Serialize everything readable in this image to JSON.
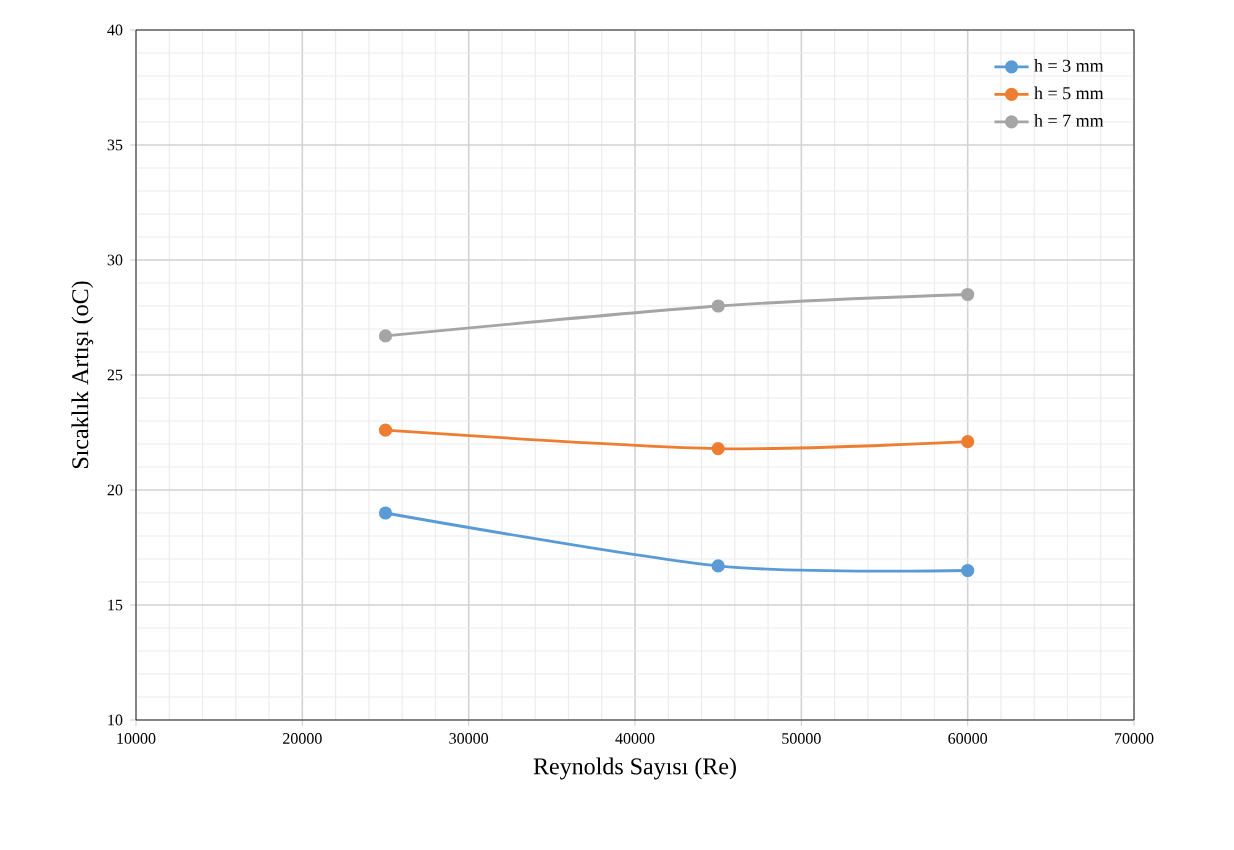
{
  "chart_data": {
    "type": "line",
    "xlabel": "Reynolds Sayısı (Re)",
    "ylabel": "Sıcaklık Artışı (oC)",
    "x": [
      25000,
      45000,
      60000
    ],
    "series": [
      {
        "name": "h = 3 mm",
        "color": "#5b9bd5",
        "values": [
          19.0,
          16.7,
          16.5
        ]
      },
      {
        "name": "h = 5 mm",
        "color": "#ed7d31",
        "values": [
          22.6,
          21.8,
          22.1
        ]
      },
      {
        "name": "h = 7 mm",
        "color": "#a5a5a5",
        "values": [
          26.7,
          28.0,
          28.5
        ]
      }
    ],
    "xlim": [
      10000,
      70000
    ],
    "xticks": [
      10000,
      20000,
      30000,
      40000,
      50000,
      60000,
      70000
    ],
    "ylim": [
      10,
      40
    ],
    "yticks": [
      10,
      15,
      20,
      25,
      30,
      35,
      40
    ],
    "grid": true,
    "legend": "top right",
    "marker": "circle",
    "line_style": "solid"
  }
}
